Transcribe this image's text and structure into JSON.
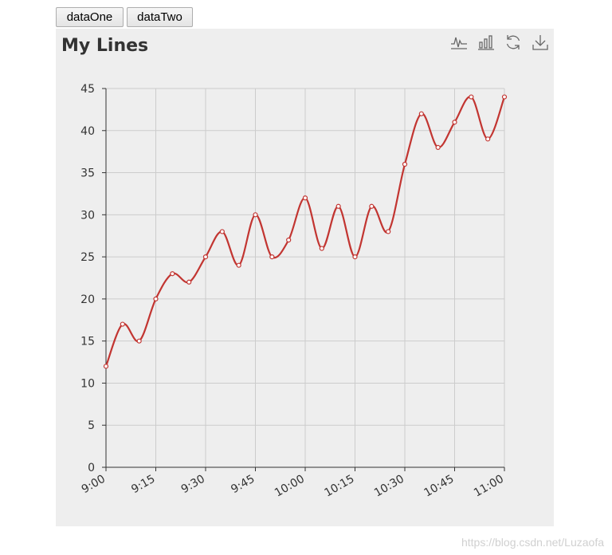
{
  "controls": {
    "button_one": "dataOne",
    "button_two": "dataTwo"
  },
  "toolbox": {
    "icons": [
      "line-chart-icon",
      "bar-chart-icon",
      "refresh-icon",
      "download-icon"
    ]
  },
  "watermark": "https://blog.csdn.net/Luzaofa",
  "colors": {
    "line": "#c23531",
    "grid": "#cccccc",
    "axis": "#333333",
    "background": "#eeeeee"
  },
  "chart_data": {
    "type": "line",
    "title": "My Lines",
    "smooth": true,
    "grid": true,
    "x_tick_labels": [
      "9:00",
      "9:15",
      "9:30",
      "9:45",
      "10:00",
      "10:15",
      "10:30",
      "10:45",
      "11:00"
    ],
    "x": [
      "9:00",
      "9:05",
      "9:10",
      "9:15",
      "9:20",
      "9:25",
      "9:30",
      "9:35",
      "9:40",
      "9:45",
      "9:50",
      "9:55",
      "10:00",
      "10:05",
      "10:10",
      "10:15",
      "10:20",
      "10:25",
      "10:30",
      "10:35",
      "10:40",
      "10:45",
      "10:50",
      "10:55",
      "11:00"
    ],
    "series": [
      {
        "values": [
          12,
          17,
          15,
          20,
          23,
          22,
          25,
          28,
          24,
          30,
          25,
          27,
          32,
          26,
          31,
          25,
          31,
          28,
          36,
          42,
          38,
          41,
          44,
          39,
          44
        ]
      }
    ],
    "ylim": [
      0,
      45
    ],
    "y_ticks": [
      0,
      5,
      10,
      15,
      20,
      25,
      30,
      35,
      40,
      45
    ]
  }
}
